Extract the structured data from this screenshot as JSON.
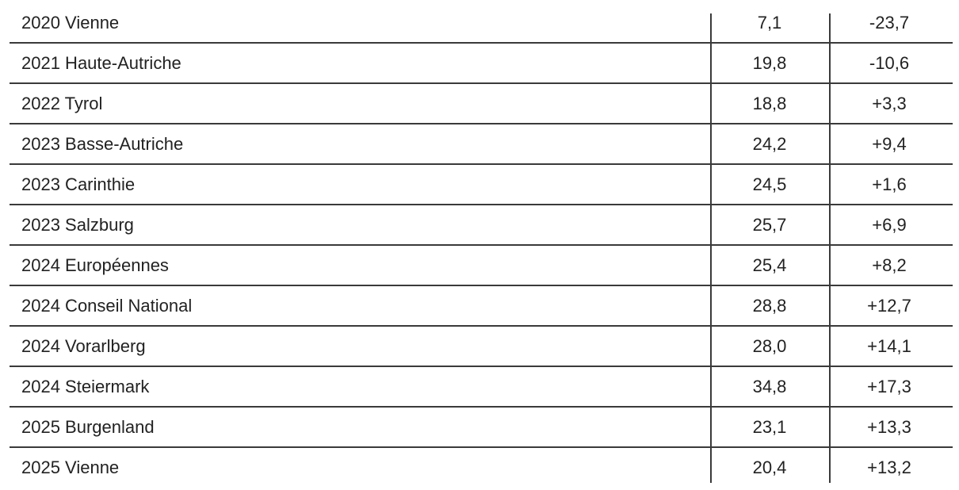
{
  "table": {
    "rows": [
      {
        "election": "2020 Vienne",
        "score": "7,1",
        "change": "-23,7"
      },
      {
        "election": "2021 Haute-Autriche",
        "score": "19,8",
        "change": "-10,6"
      },
      {
        "election": "2022 Tyrol",
        "score": "18,8",
        "change": "+3,3"
      },
      {
        "election": "2023 Basse-Autriche",
        "score": "24,2",
        "change": "+9,4"
      },
      {
        "election": "2023 Carinthie",
        "score": "24,5",
        "change": "+1,6"
      },
      {
        "election": "2023 Salzburg",
        "score": "25,7",
        "change": "+6,9"
      },
      {
        "election": "2024 Européennes",
        "score": "25,4",
        "change": "+8,2"
      },
      {
        "election": "2024 Conseil National",
        "score": "28,8",
        "change": "+12,7"
      },
      {
        "election": "2024 Vorarlberg",
        "score": "28,0",
        "change": "+14,1"
      },
      {
        "election": "2024 Steiermark",
        "score": "34,8",
        "change": "+17,3"
      },
      {
        "election": "2025 Burgenland",
        "score": "23,1",
        "change": "+13,3"
      },
      {
        "election": "2025 Vienne",
        "score": "20,4",
        "change": "+13,2"
      }
    ]
  }
}
